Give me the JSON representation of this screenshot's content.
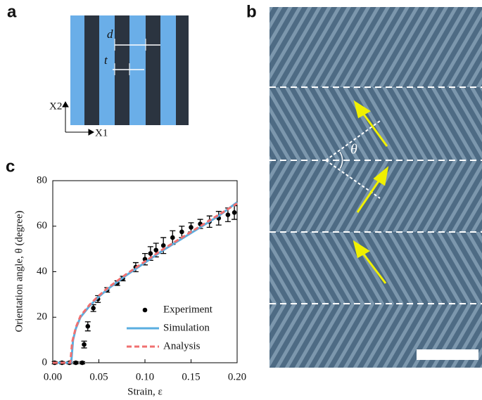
{
  "panel_labels": [
    "a",
    "b",
    "c"
  ],
  "panel_a": {
    "spacing_label": "d",
    "width_label": "t",
    "axis_vertical": "X2",
    "axis_horizontal": "X1"
  },
  "panel_b": {
    "angle_label": "θ"
  },
  "chart_data": {
    "type": "line",
    "xlabel": "Strain, ε",
    "ylabel": "Orientation angle, θ (degree)",
    "xlim": [
      0,
      0.2
    ],
    "ylim": [
      0,
      80
    ],
    "xticks": [
      {
        "value": 0,
        "label": "0.00"
      },
      {
        "value": 0.05,
        "label": "0.05"
      },
      {
        "value": 0.1,
        "label": "0.10"
      },
      {
        "value": 0.15,
        "label": "0.15"
      },
      {
        "value": 0.2,
        "label": "0.20"
      }
    ],
    "yticks": [
      0,
      20,
      40,
      60,
      80
    ],
    "legend": "lower right",
    "series": [
      {
        "name": "Experiment",
        "style": "markers",
        "color": "#000000",
        "x": [
          0.002,
          0.01,
          0.018,
          0.025,
          0.032,
          0.034,
          0.038,
          0.044,
          0.049,
          0.059,
          0.07,
          0.076,
          0.09,
          0.1,
          0.106,
          0.112,
          0.12,
          0.13,
          0.14,
          0.15,
          0.16,
          0.17,
          0.18,
          0.19,
          0.197
        ],
        "values": [
          0,
          0,
          0,
          0,
          0,
          8,
          16,
          24,
          28,
          32,
          35,
          37,
          42,
          45.5,
          48,
          49.5,
          51.5,
          55,
          57.5,
          59.5,
          61,
          62,
          63.5,
          65,
          66
        ],
        "errors": [
          0.5,
          0.5,
          0.5,
          0.5,
          0.5,
          1.5,
          2,
          1.5,
          1.5,
          1,
          1,
          1,
          2,
          2.5,
          3,
          3,
          3.5,
          3,
          2.5,
          2,
          2,
          2.5,
          3,
          3,
          3
        ]
      },
      {
        "name": "Simulation",
        "style": "solid",
        "color": "#5aaee0",
        "x": [
          0,
          0.02,
          0.022,
          0.025,
          0.03,
          0.04,
          0.05,
          0.06,
          0.08,
          0.1,
          0.12,
          0.14,
          0.16,
          0.18,
          0.2
        ],
        "values": [
          0,
          0,
          10,
          15,
          20,
          25,
          29,
          32.5,
          38.5,
          44,
          49.5,
          54.5,
          59.5,
          64.5,
          70.5
        ]
      },
      {
        "name": "Analysis",
        "style": "dashed",
        "color": "#f07070",
        "x": [
          0,
          0.019,
          0.021,
          0.025,
          0.03,
          0.04,
          0.05,
          0.06,
          0.08,
          0.1,
          0.12,
          0.14,
          0.16,
          0.18,
          0.2
        ],
        "values": [
          0,
          0,
          9,
          15.5,
          20.5,
          25.5,
          29.5,
          33,
          39,
          44.5,
          50,
          55,
          60,
          65,
          70
        ]
      }
    ]
  }
}
